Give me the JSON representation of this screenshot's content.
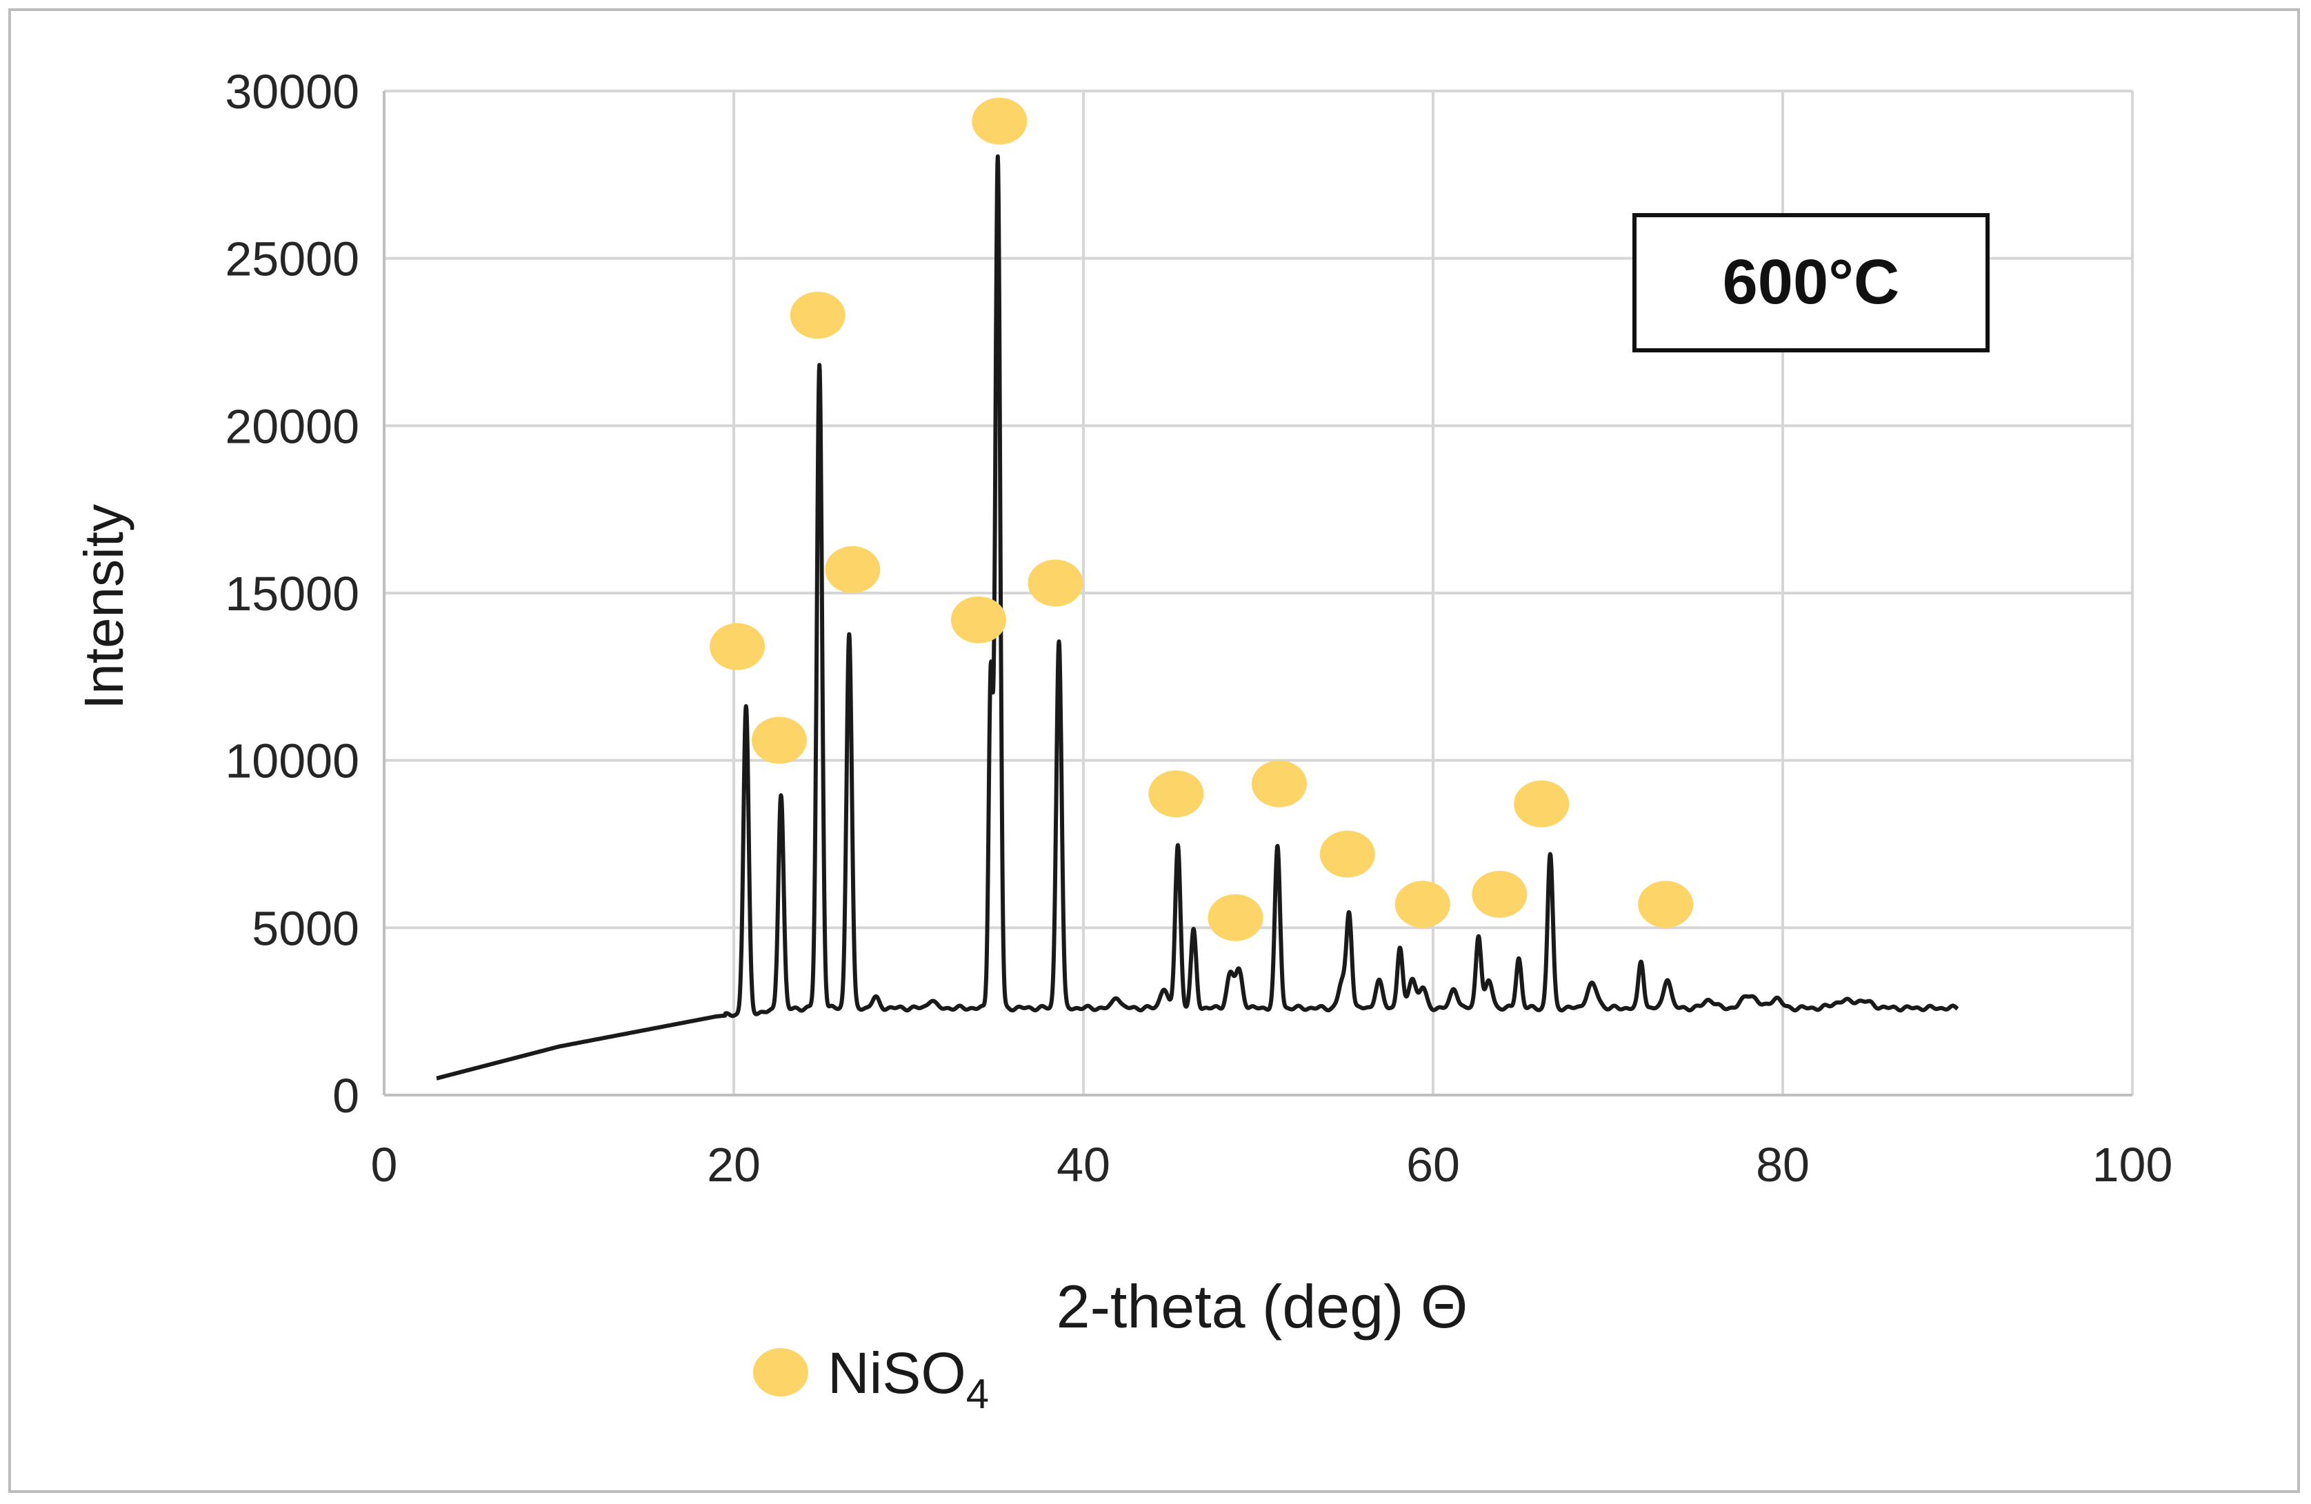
{
  "chart_data": {
    "type": "line",
    "title": "",
    "xlabel": "2-theta (deg) Θ",
    "ylabel": "Intensity",
    "xlim": [
      0,
      100
    ],
    "ylim": [
      0,
      30000
    ],
    "x_ticks": [
      "0",
      "20",
      "40",
      "60",
      "80",
      "100"
    ],
    "y_ticks": [
      "0",
      "5000",
      "10000",
      "15000",
      "20000",
      "25000",
      "30000"
    ],
    "grid": true,
    "annotation": "600°C",
    "line_color": "#1a1a1a",
    "marker_color": "#fdd467",
    "legend": {
      "marker_label": "NiSO",
      "marker_label_subscript": "4",
      "placement": "bottom-center"
    },
    "baseline": [
      [
        3,
        500
      ],
      [
        10,
        1450
      ],
      [
        19,
        2350
      ],
      [
        24,
        2600
      ],
      [
        90,
        2600
      ]
    ],
    "peaks": [
      {
        "x": 20.7,
        "y": 11600,
        "w": 0.15
      },
      {
        "x": 22.7,
        "y": 9000,
        "w": 0.15
      },
      {
        "x": 24.9,
        "y": 21800,
        "w": 0.15
      },
      {
        "x": 26.6,
        "y": 13800,
        "w": 0.15
      },
      {
        "x": 28.1,
        "y": 2900,
        "w": 0.2
      },
      {
        "x": 31.3,
        "y": 2850,
        "w": 0.2
      },
      {
        "x": 34.7,
        "y": 12500,
        "w": 0.12
      },
      {
        "x": 35.1,
        "y": 28000,
        "w": 0.14
      },
      {
        "x": 38.6,
        "y": 13600,
        "w": 0.15
      },
      {
        "x": 41.9,
        "y": 2950,
        "w": 0.2
      },
      {
        "x": 44.6,
        "y": 3200,
        "w": 0.2
      },
      {
        "x": 45.4,
        "y": 7500,
        "w": 0.15
      },
      {
        "x": 46.3,
        "y": 4900,
        "w": 0.15
      },
      {
        "x": 48.4,
        "y": 3600,
        "w": 0.2
      },
      {
        "x": 48.9,
        "y": 3700,
        "w": 0.2
      },
      {
        "x": 51.1,
        "y": 7400,
        "w": 0.15
      },
      {
        "x": 54.8,
        "y": 3400,
        "w": 0.2
      },
      {
        "x": 55.2,
        "y": 5400,
        "w": 0.15
      },
      {
        "x": 56.9,
        "y": 3400,
        "w": 0.2
      },
      {
        "x": 58.1,
        "y": 4400,
        "w": 0.15
      },
      {
        "x": 58.8,
        "y": 3500,
        "w": 0.2
      },
      {
        "x": 59.4,
        "y": 3200,
        "w": 0.2
      },
      {
        "x": 61.2,
        "y": 3200,
        "w": 0.2
      },
      {
        "x": 62.6,
        "y": 4800,
        "w": 0.15
      },
      {
        "x": 63.2,
        "y": 3400,
        "w": 0.2
      },
      {
        "x": 64.9,
        "y": 4100,
        "w": 0.15
      },
      {
        "x": 66.7,
        "y": 7200,
        "w": 0.15
      },
      {
        "x": 69.1,
        "y": 3300,
        "w": 0.3
      },
      {
        "x": 71.9,
        "y": 4000,
        "w": 0.15
      },
      {
        "x": 73.4,
        "y": 3500,
        "w": 0.2
      },
      {
        "x": 75.8,
        "y": 2850,
        "w": 0.3
      },
      {
        "x": 78.1,
        "y": 3000,
        "w": 0.4
      },
      {
        "x": 79.6,
        "y": 2900,
        "w": 0.3
      },
      {
        "x": 83.4,
        "y": 2800,
        "w": 0.5
      },
      {
        "x": 84.6,
        "y": 2800,
        "w": 0.5
      }
    ],
    "markers": [
      {
        "x": 20.2,
        "y": 13400
      },
      {
        "x": 22.6,
        "y": 10600
      },
      {
        "x": 24.8,
        "y": 23300
      },
      {
        "x": 26.8,
        "y": 15700
      },
      {
        "x": 34.0,
        "y": 14200
      },
      {
        "x": 35.2,
        "y": 29100
      },
      {
        "x": 38.4,
        "y": 15300
      },
      {
        "x": 45.3,
        "y": 9000
      },
      {
        "x": 48.7,
        "y": 5300
      },
      {
        "x": 51.2,
        "y": 9300
      },
      {
        "x": 55.1,
        "y": 7200
      },
      {
        "x": 59.4,
        "y": 5700
      },
      {
        "x": 63.8,
        "y": 6000
      },
      {
        "x": 66.2,
        "y": 8700
      },
      {
        "x": 73.3,
        "y": 5700
      }
    ]
  }
}
